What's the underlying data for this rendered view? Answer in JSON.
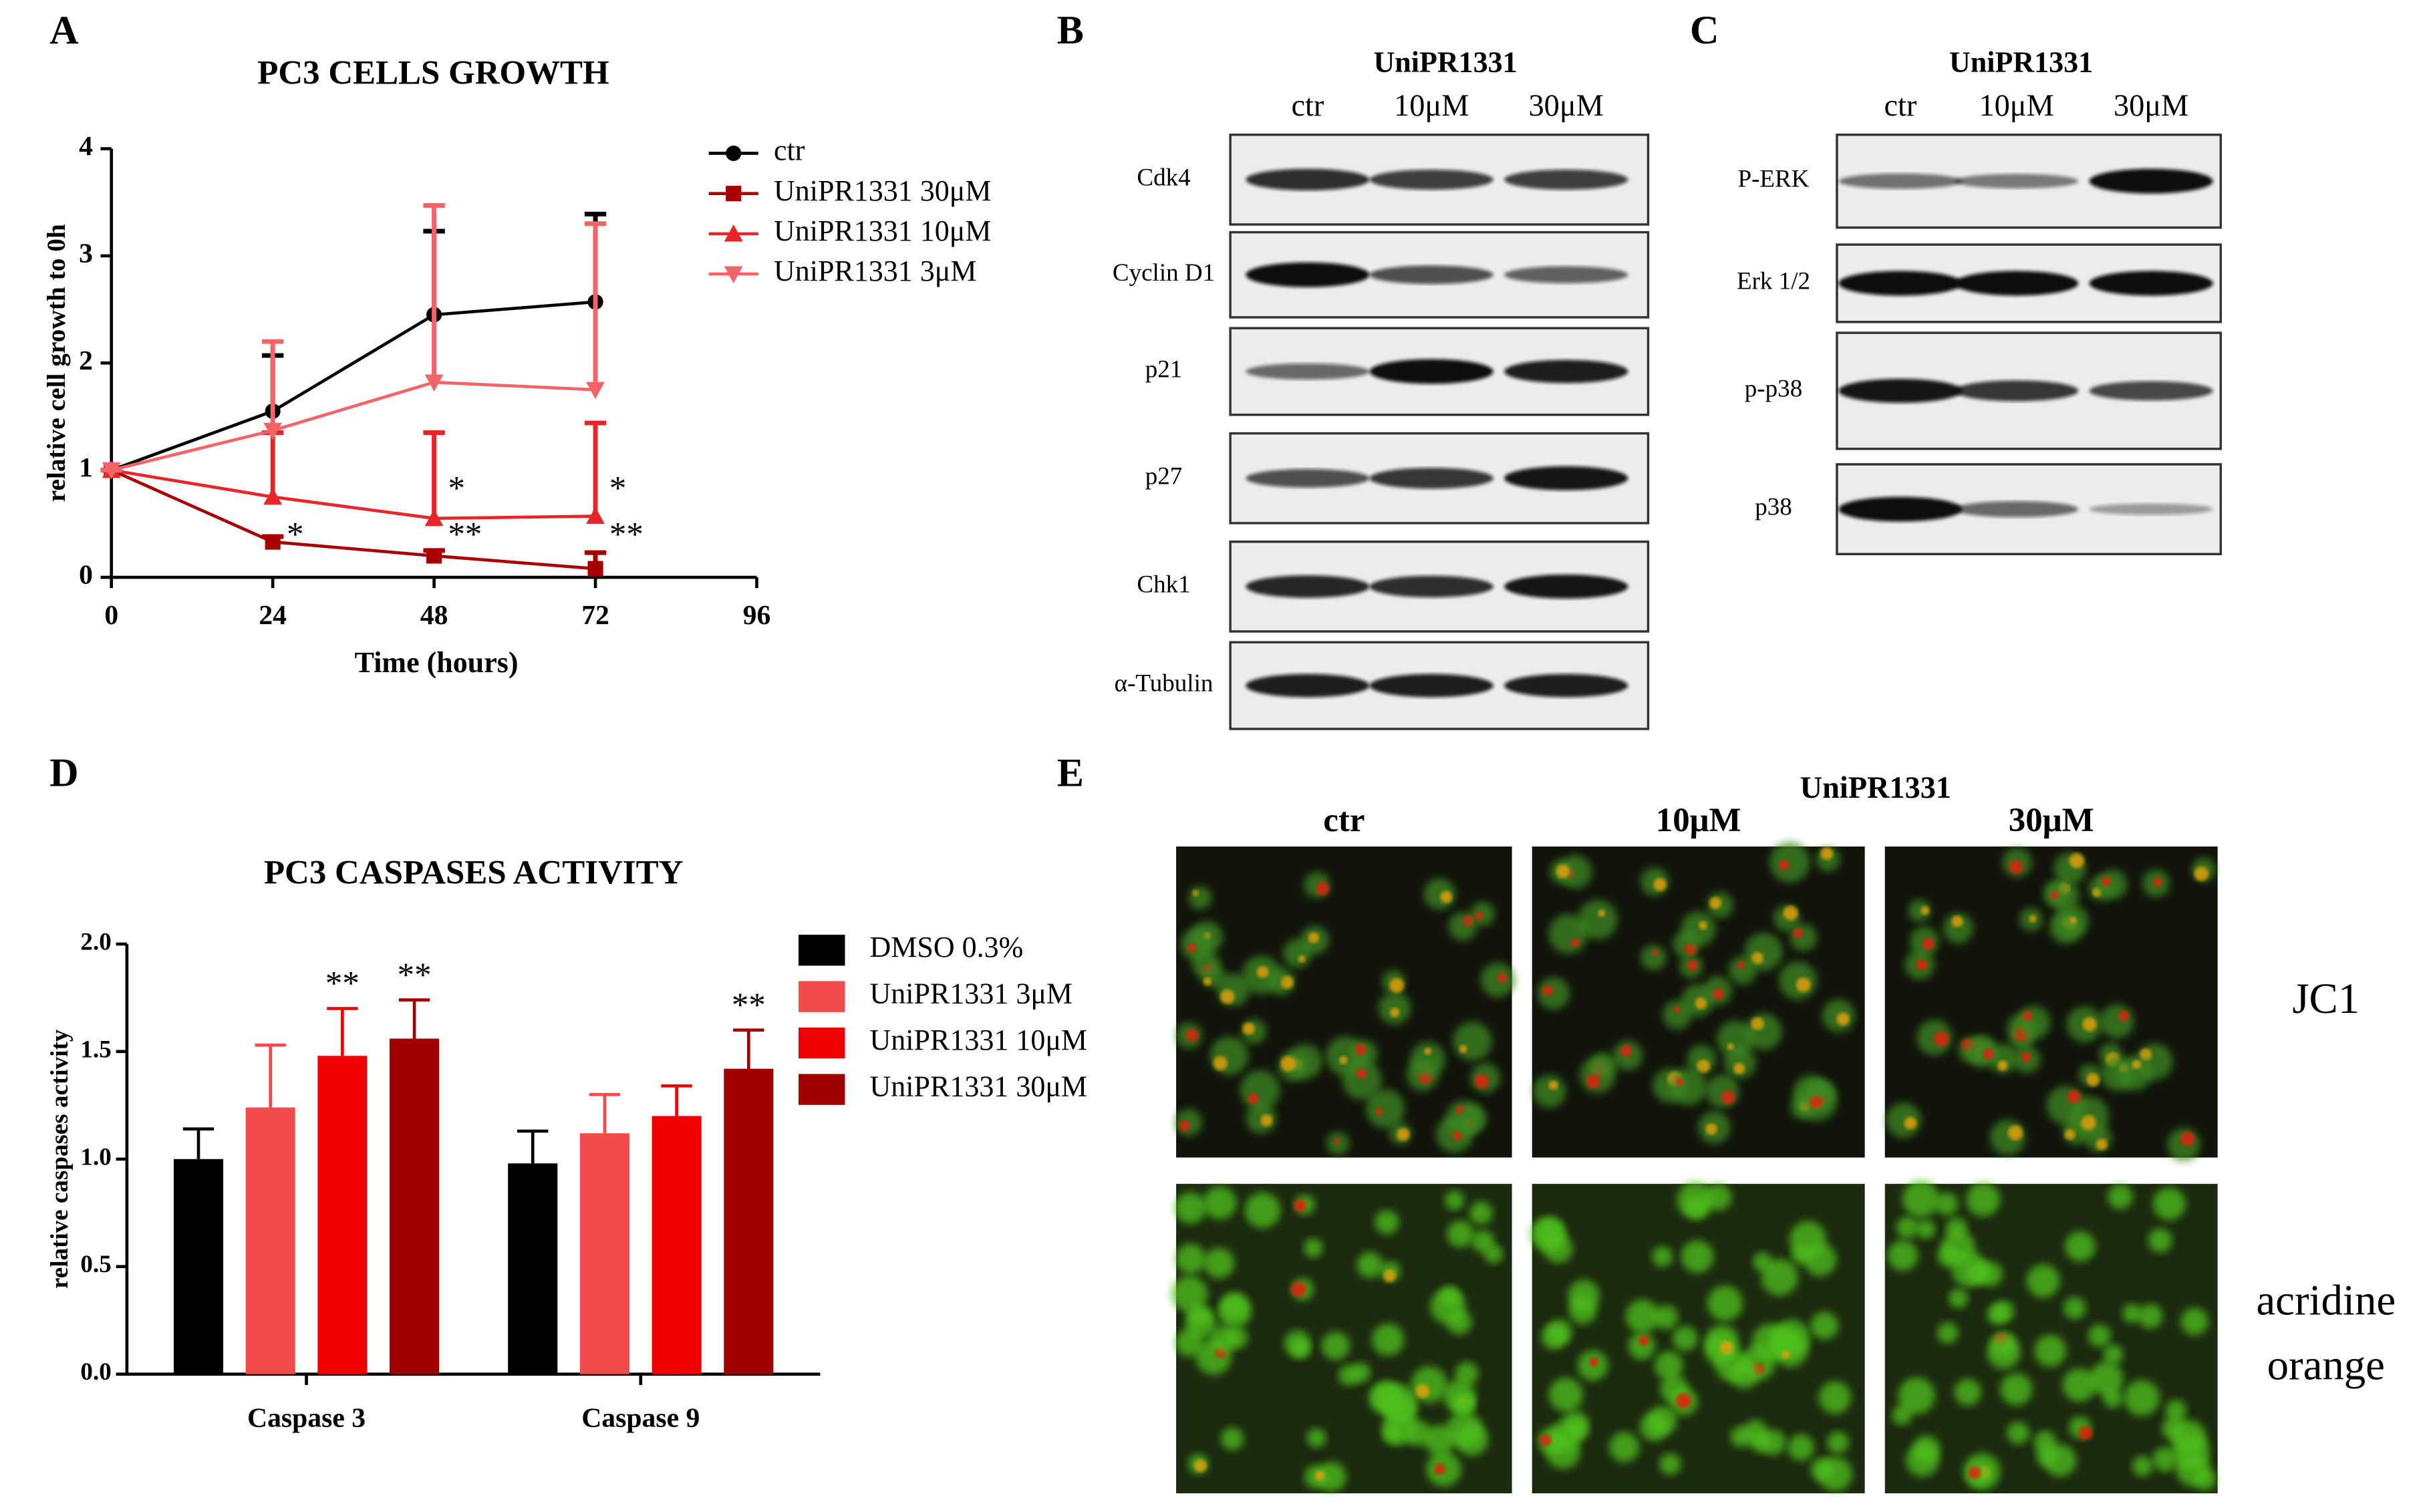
{
  "chart_data": [
    {
      "type": "line",
      "panel": "A",
      "title": "PC3 CELLS GROWTH",
      "x_label": "Time (hours)",
      "y_label": "relative cell growth to 0h",
      "x": [
        0,
        24,
        48,
        72
      ],
      "xlim": [
        0,
        96
      ],
      "xticks": [
        0,
        24,
        48,
        72,
        96
      ],
      "ylim": [
        0,
        4
      ],
      "yticks": [
        0,
        1,
        2,
        3,
        4
      ],
      "series": [
        {
          "name": "ctr",
          "color": "#000000",
          "marker": "circle",
          "values": [
            1,
            1.55,
            2.45,
            2.57
          ],
          "errors": [
            0,
            0.52,
            0.78,
            0.82
          ]
        },
        {
          "name": "UniPR1331 30μM",
          "color": "#a80000",
          "marker": "square",
          "values": [
            1,
            0.33,
            0.2,
            0.08
          ],
          "errors": [
            0,
            0.05,
            0.05,
            0.15
          ]
        },
        {
          "name": "UniPR1331 10μM",
          "color": "#e8262a",
          "marker": "triangle-up",
          "values": [
            1,
            0.75,
            0.55,
            0.57
          ],
          "errors": [
            0,
            0.6,
            0.8,
            0.87
          ]
        },
        {
          "name": "UniPR1331 3μM",
          "color": "#f26468",
          "marker": "triangle-down",
          "values": [
            1,
            1.37,
            1.82,
            1.75
          ],
          "errors": [
            0,
            0.83,
            1.65,
            1.55
          ]
        }
      ],
      "annotations": [
        {
          "text": "*",
          "x": 24,
          "y": 0.37
        },
        {
          "text": "**",
          "x": 48,
          "y": 0.37
        },
        {
          "text": "**",
          "x": 72,
          "y": 0.37
        },
        {
          "text": "*",
          "x": 48,
          "y": 0.8
        },
        {
          "text": "*",
          "x": 72,
          "y": 0.8
        }
      ]
    },
    {
      "type": "bar",
      "panel": "D",
      "title": "PC3 CASPASES ACTIVITY",
      "y_label": "relative caspases activity",
      "categories": [
        "Caspase 3",
        "Caspase 9"
      ],
      "ylim": [
        0,
        2
      ],
      "yticks": [
        {
          "value": 0,
          "label": "0.0"
        },
        {
          "value": 0.5,
          "label": "0.5"
        },
        {
          "value": 1,
          "label": "1.0"
        },
        {
          "value": 1.5,
          "label": "1.5"
        },
        {
          "value": 2,
          "label": "2.0"
        }
      ],
      "series": [
        {
          "name": "DMSO 0.3%",
          "color": "#000000",
          "values": [
            1.0,
            0.98
          ],
          "errors": [
            0.14,
            0.15
          ]
        },
        {
          "name": "UniPR1331 3μM",
          "color": "#f24b4b",
          "values": [
            1.24,
            1.12
          ],
          "errors": [
            0.29,
            0.18
          ]
        },
        {
          "name": "UniPR1331 10μM",
          "color": "#f00000",
          "values": [
            1.48,
            1.2
          ],
          "errors": [
            0.22,
            0.14
          ]
        },
        {
          "name": "UniPR1331 30μM",
          "color": "#a00000",
          "values": [
            1.56,
            1.42
          ],
          "errors": [
            0.18,
            0.18
          ]
        }
      ],
      "annotations": [
        {
          "text": "**",
          "series": 2,
          "category": 0
        },
        {
          "text": "**",
          "series": 3,
          "category": 0
        },
        {
          "text": "**",
          "series": 3,
          "category": 1
        }
      ]
    }
  ],
  "blots": [
    {
      "panel": "B",
      "treatment": "UniPR1331",
      "lanes": [
        "ctr",
        "10μM",
        "30μM"
      ],
      "proteins": [
        "Cdk4",
        "Cyclin D1",
        "p21",
        "p27",
        "Chk1",
        "α-Tubulin"
      ]
    },
    {
      "panel": "C",
      "treatment": "UniPR1331",
      "lanes": [
        "ctr",
        "10μM",
        "30μM"
      ],
      "proteins": [
        "P-ERK",
        "Erk 1/2",
        "p-p38",
        "p38"
      ]
    }
  ],
  "microscopy": {
    "panel": "E",
    "treatment": "UniPR1331",
    "columns": [
      "ctr",
      "10μM",
      "30μM"
    ],
    "stains": [
      [
        "JC1"
      ],
      [
        "acridine",
        "orange"
      ]
    ]
  }
}
